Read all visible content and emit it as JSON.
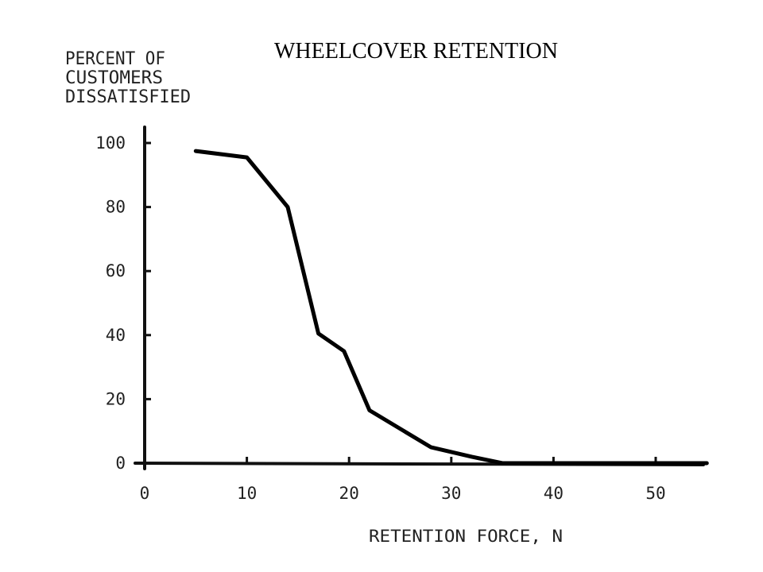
{
  "chart_data": {
    "type": "line",
    "title": "WHEELCOVER RETENTION",
    "ylabel_lines": [
      "PERCENT OF",
      "CUSTOMERS",
      "DISSATISFIED"
    ],
    "xlabel": "RETENTION FORCE, N",
    "xlim": [
      0,
      55
    ],
    "ylim": [
      0,
      100
    ],
    "xticks": [
      0,
      10,
      20,
      30,
      40,
      50
    ],
    "yticks": [
      0,
      20,
      40,
      60,
      80,
      100
    ],
    "grid": false,
    "series": [
      {
        "x": [
          5,
          10,
          14,
          17,
          19.5,
          22,
          28,
          32,
          35,
          55
        ],
        "y": [
          97.5,
          95.5,
          80,
          40.5,
          35,
          16.5,
          5,
          2,
          0,
          0
        ]
      }
    ],
    "colors": {
      "line": "#000000",
      "axis": "#111111",
      "text": "#222222"
    }
  }
}
